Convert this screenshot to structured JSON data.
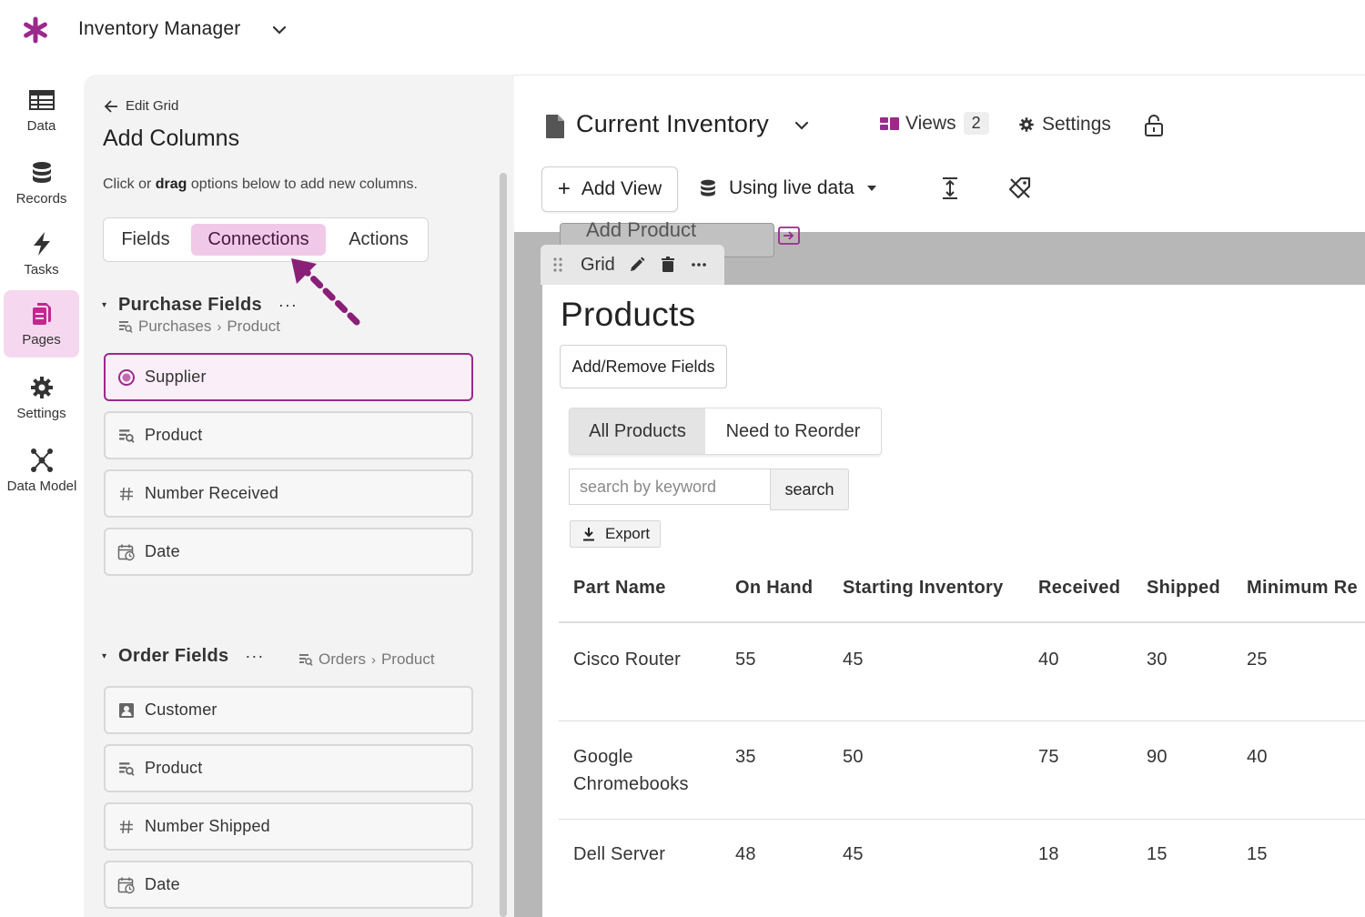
{
  "app": {
    "title": "Inventory Manager",
    "logo_icon": "asterisk-logo",
    "accent": "#9b2a8c"
  },
  "nav": {
    "items": [
      {
        "label": "Data",
        "icon": "table-icon"
      },
      {
        "label": "Records",
        "icon": "database-icon"
      },
      {
        "label": "Tasks",
        "icon": "lightning-icon"
      },
      {
        "label": "Pages",
        "icon": "pages-icon",
        "active": true
      },
      {
        "label": "Settings",
        "icon": "gear-icon"
      },
      {
        "label": "Data Model",
        "icon": "network-icon"
      }
    ]
  },
  "builder": {
    "back_label": "Edit Grid",
    "title": "Add Columns",
    "hint_pre": "Click or ",
    "hint_bold": "drag",
    "hint_post": " options below to add new columns.",
    "tabs": [
      "Fields",
      "Connections",
      "Actions"
    ],
    "active_tab": "Connections",
    "purchase": {
      "title": "Purchase Fields",
      "more": "···",
      "path_from": "Purchases",
      "path_to": "Product",
      "fields": [
        {
          "label": "Supplier",
          "icon": "radio-connection-icon",
          "selected": true
        },
        {
          "label": "Product",
          "icon": "connection-icon"
        },
        {
          "label": "Number Received",
          "icon": "hash-icon"
        },
        {
          "label": "Date",
          "icon": "calendar-icon"
        }
      ]
    },
    "order": {
      "title": "Order Fields",
      "more": "···",
      "path_from": "Orders",
      "path_to": "Product",
      "fields": [
        {
          "label": "Customer",
          "icon": "person-card-icon"
        },
        {
          "label": "Product",
          "icon": "connection-icon"
        },
        {
          "label": "Number Shipped",
          "icon": "hash-icon"
        },
        {
          "label": "Date",
          "icon": "calendar-icon"
        }
      ]
    }
  },
  "header": {
    "page_title": "Current Inventory",
    "views_label": "Views",
    "views_count": "2",
    "settings_label": "Settings",
    "add_view_label": "Add View",
    "live_data_label": "Using live data"
  },
  "canvas": {
    "ghost_button": "Add Product",
    "grid_label": "Grid",
    "view_title": "Products",
    "add_remove_label": "Add/Remove Fields",
    "filter_tabs": [
      "All Products",
      "Need to Reorder"
    ],
    "search_placeholder": "search by keyword",
    "search_label": "search",
    "export_label": "Export"
  },
  "table": {
    "columns": [
      "Part Name",
      "On Hand",
      "Starting Inventory",
      "Received",
      "Shipped",
      "Minimum Re"
    ],
    "rows": [
      {
        "name_line1": "Cisco Router",
        "name_line2": "",
        "on_hand": "55",
        "starting": "45",
        "received": "40",
        "shipped": "30",
        "minimum": "25"
      },
      {
        "name_line1": "Google",
        "name_line2": "Chromebooks",
        "on_hand": "35",
        "starting": "50",
        "received": "75",
        "shipped": "90",
        "minimum": "40"
      },
      {
        "name_line1": "Dell Server",
        "name_line2": "",
        "on_hand": "48",
        "starting": "45",
        "received": "18",
        "shipped": "15",
        "minimum": "15"
      }
    ]
  }
}
